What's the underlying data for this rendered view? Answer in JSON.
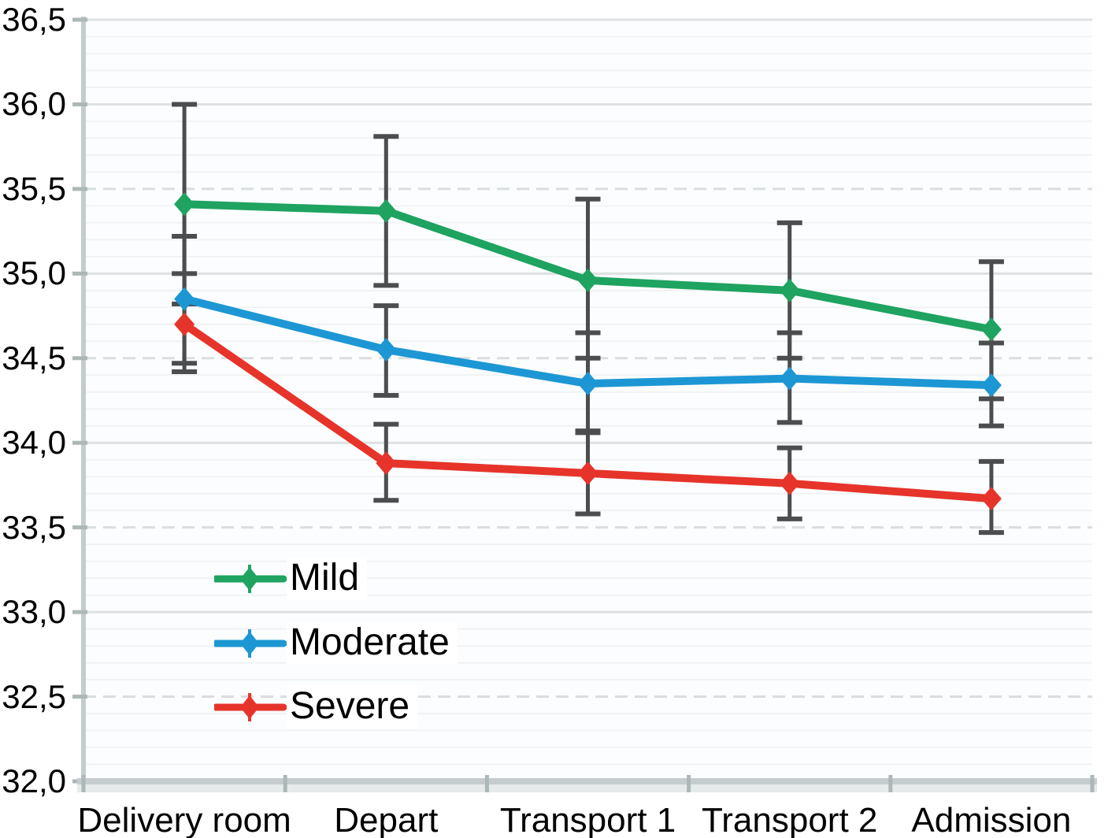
{
  "chart_data": {
    "type": "line",
    "title": "",
    "xlabel": "",
    "ylabel": "",
    "decimal_separator": ",",
    "ylim": [
      32.0,
      36.5
    ],
    "y_major_step": 0.5,
    "y_minor_step": 0.1,
    "y_tick_labels": [
      "36,5",
      "36,0",
      "35,5",
      "35,0",
      "34,5",
      "34,0",
      "33,5",
      "33,0",
      "32,5",
      "32,0"
    ],
    "grid": "horizontal",
    "legend_position": "inside-bottom-left",
    "categories": [
      "Delivery room",
      "Depart",
      "Transport 1",
      "Transport 2",
      "Admission"
    ],
    "series": [
      {
        "name": "Mild",
        "color": "#1ea360",
        "marker": "diamond",
        "values": [
          35.41,
          35.37,
          34.96,
          34.9,
          34.67
        ],
        "err_low": [
          34.82,
          34.93,
          34.5,
          34.5,
          34.26
        ],
        "err_high": [
          36.0,
          35.81,
          35.44,
          35.3,
          35.07
        ]
      },
      {
        "name": "Moderate",
        "color": "#1d97d4",
        "marker": "diamond",
        "values": [
          34.85,
          34.55,
          34.35,
          34.38,
          34.34
        ],
        "err_low": [
          34.47,
          34.28,
          34.06,
          34.12,
          34.1
        ],
        "err_high": [
          35.22,
          34.81,
          34.65,
          34.65,
          34.59
        ]
      },
      {
        "name": "Severe",
        "color": "#e6342b",
        "marker": "diamond",
        "values": [
          34.7,
          33.88,
          33.82,
          33.76,
          33.67
        ],
        "err_low": [
          34.42,
          33.66,
          33.58,
          33.55,
          33.47
        ],
        "err_high": [
          35.0,
          34.11,
          34.07,
          33.97,
          33.89
        ]
      }
    ],
    "error_bar_color": "#4b4d4e",
    "legend_labels": [
      "Mild",
      "Moderate",
      "Severe"
    ]
  }
}
